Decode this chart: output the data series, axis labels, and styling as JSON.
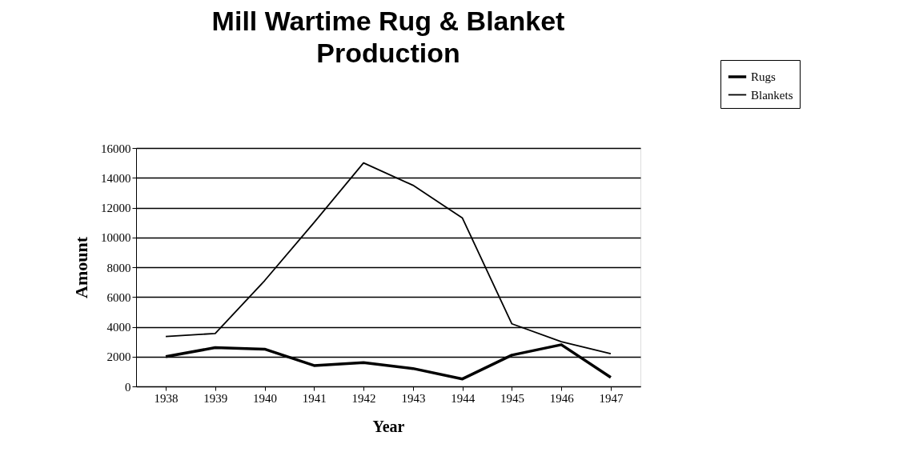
{
  "chart_data": {
    "type": "line",
    "title": "Mill Wartime Rug & Blanket Production",
    "xlabel": "Year",
    "ylabel": "Amount",
    "categories": [
      "1938",
      "1939",
      "1940",
      "1941",
      "1942",
      "1943",
      "1944",
      "1945",
      "1946",
      "1947"
    ],
    "series": [
      {
        "name": "Rugs",
        "color": "#000000",
        "values": [
          2000,
          2600,
          2500,
          1400,
          1600,
          1200,
          500,
          2100,
          2800,
          600
        ]
      },
      {
        "name": "Blankets",
        "color": "#000000",
        "values": [
          3350,
          3550,
          7100,
          11000,
          15000,
          13500,
          11300,
          4200,
          3000,
          2200
        ]
      }
    ],
    "ylim": [
      0,
      16000
    ],
    "yticks": [
      0,
      2000,
      4000,
      6000,
      8000,
      10000,
      12000,
      14000,
      16000
    ],
    "grid": "y",
    "legend": "top right",
    "marker": "none",
    "line_style": "solid"
  }
}
